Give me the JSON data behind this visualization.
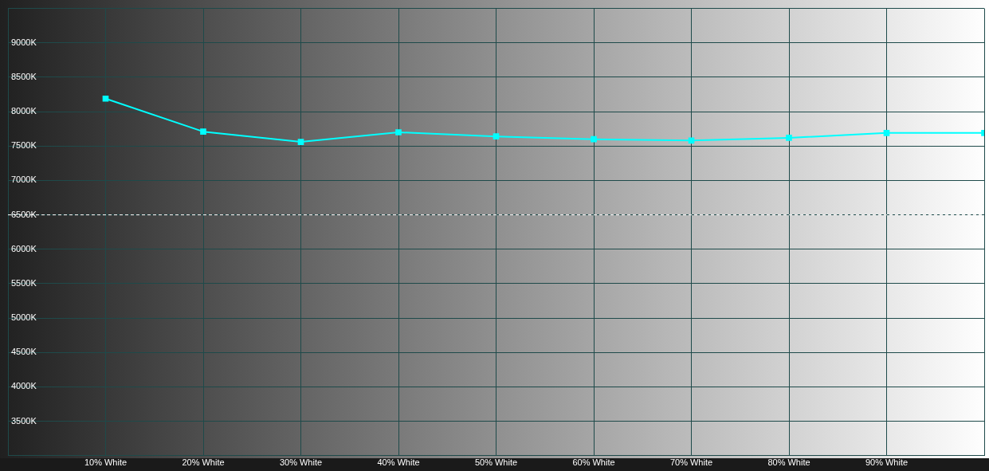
{
  "chart_data": {
    "type": "line",
    "x": [
      10,
      20,
      30,
      40,
      50,
      60,
      70,
      80,
      90,
      100
    ],
    "xlim": [
      0,
      100
    ],
    "xticks": [
      {
        "value": 0,
        "label": null
      },
      {
        "value": 10,
        "label": "10% White"
      },
      {
        "value": 20,
        "label": "20% White"
      },
      {
        "value": 30,
        "label": "30% White"
      },
      {
        "value": 40,
        "label": "40% White"
      },
      {
        "value": 50,
        "label": "50% White"
      },
      {
        "value": 60,
        "label": "60% White"
      },
      {
        "value": 70,
        "label": "70% White"
      },
      {
        "value": 80,
        "label": "80% White"
      },
      {
        "value": 90,
        "label": "90% White"
      },
      {
        "value": 100,
        "label": null
      }
    ],
    "ylim": [
      3000,
      9500
    ],
    "yticks": [
      {
        "value": 3000,
        "label": null
      },
      {
        "value": 3500,
        "label": "3500K"
      },
      {
        "value": 4000,
        "label": "4000K"
      },
      {
        "value": 4500,
        "label": "4500K"
      },
      {
        "value": 5000,
        "label": "5000K"
      },
      {
        "value": 5500,
        "label": "5500K"
      },
      {
        "value": 6000,
        "label": "6000K"
      },
      {
        "value": 6500,
        "label": "6500K"
      },
      {
        "value": 7000,
        "label": "7000K"
      },
      {
        "value": 7500,
        "label": "7500K"
      },
      {
        "value": 8000,
        "label": "8000K"
      },
      {
        "value": 8500,
        "label": "8500K"
      },
      {
        "value": 9000,
        "label": "9000K"
      },
      {
        "value": 9500,
        "label": null
      }
    ],
    "series": [
      {
        "color": "#00ffff",
        "values": [
          8190,
          7710,
          7560,
          7700,
          7640,
          7600,
          7580,
          7620,
          7690,
          7690
        ]
      }
    ],
    "ref_lines": [
      {
        "axis": "y",
        "value": 6500,
        "color": "#ffffff",
        "line_style": "dashed"
      }
    ],
    "grid": true,
    "marker": "square",
    "line_style": "solid"
  }
}
